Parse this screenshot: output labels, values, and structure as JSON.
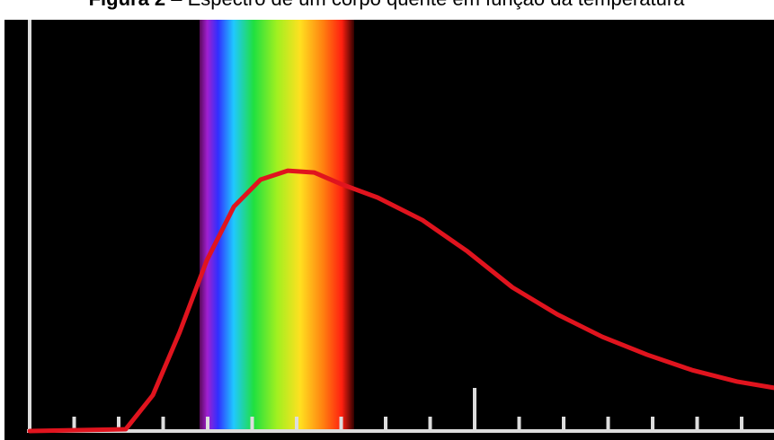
{
  "chart_data": {
    "type": "line",
    "title_label": "Figura 2",
    "title": "– Espectro de um corpo quente em função da temperatura",
    "x": [
      0,
      2.16,
      2.77,
      3.37,
      3.98,
      4.59,
      5.19,
      5.8,
      6.4,
      7.01,
      7.82,
      8.83,
      9.84,
      10.85,
      11.86,
      12.87,
      13.88,
      14.89,
      15.9,
      16.73
    ],
    "series": [
      {
        "color": "#e0141e",
        "values": [
          0,
          0.7,
          13.8,
          37.9,
          65.5,
          86.2,
          96.6,
          100,
          99.3,
          94.8,
          89.7,
          81.0,
          69.0,
          55.2,
          44.8,
          36.2,
          29.3,
          23.4,
          19.0,
          16.6
        ]
      }
    ],
    "xlim": [
      0,
      16.73
    ],
    "ylim": [
      0,
      158
    ]
  }
}
